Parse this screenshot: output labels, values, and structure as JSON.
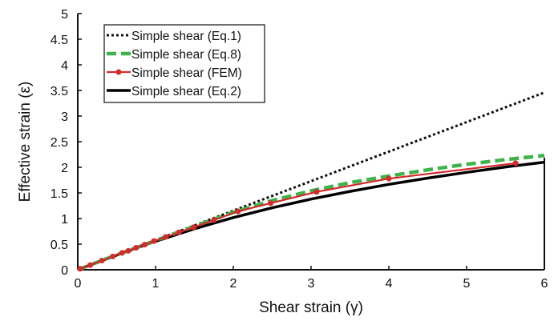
{
  "chart_data": {
    "type": "line",
    "title": "",
    "xlabel": "Shear strain (γ)",
    "ylabel": "Effective strain (ε)",
    "xlim": [
      0,
      6
    ],
    "ylim": [
      0,
      5
    ],
    "xticks": [
      "0",
      "1",
      "2",
      "3",
      "4",
      "5",
      "6"
    ],
    "yticks": [
      "0",
      "0.5",
      "1",
      "1.5",
      "2",
      "2.5",
      "3",
      "3.5",
      "4",
      "4.5",
      "5"
    ],
    "grid": false,
    "legend_position": "top-left",
    "series": [
      {
        "name": "Simple shear (Eq.1)",
        "style": "dotted",
        "color": "#111111",
        "points": [
          [
            0,
            0
          ],
          [
            6,
            3.46
          ]
        ]
      },
      {
        "name": "Simple shear (Eq.8)",
        "style": "dashed",
        "color": "#3cb44a",
        "points": [
          [
            0,
            0
          ],
          [
            0.5,
            0.29
          ],
          [
            1,
            0.57
          ],
          [
            1.5,
            0.85
          ],
          [
            2,
            1.12
          ],
          [
            2.5,
            1.35
          ],
          [
            3,
            1.54
          ],
          [
            3.5,
            1.7
          ],
          [
            4,
            1.83
          ],
          [
            4.5,
            1.95
          ],
          [
            5,
            2.06
          ],
          [
            5.5,
            2.15
          ],
          [
            6,
            2.23
          ]
        ]
      },
      {
        "name": "Simple shear (FEM)",
        "style": "solid-markers",
        "color": "#d42a2a",
        "points": [
          [
            0.03,
            0.02
          ],
          [
            0.16,
            0.09
          ],
          [
            0.31,
            0.18
          ],
          [
            0.45,
            0.26
          ],
          [
            0.57,
            0.33
          ],
          [
            0.65,
            0.37
          ],
          [
            0.75,
            0.43
          ],
          [
            0.86,
            0.49
          ],
          [
            0.98,
            0.56
          ],
          [
            1.13,
            0.64
          ],
          [
            1.3,
            0.73
          ],
          [
            1.49,
            0.83
          ],
          [
            1.75,
            0.97
          ],
          [
            2.06,
            1.14
          ],
          [
            2.48,
            1.3
          ],
          [
            3.07,
            1.52
          ],
          [
            4.0,
            1.78
          ],
          [
            5.63,
            2.08
          ]
        ]
      },
      {
        "name": "Simple shear (Eq.2)",
        "style": "solid-thick",
        "color": "#000000",
        "points": [
          [
            0,
            0
          ],
          [
            0.5,
            0.286
          ],
          [
            1,
            0.556
          ],
          [
            1.5,
            0.8
          ],
          [
            2,
            1.018
          ],
          [
            2.5,
            1.21
          ],
          [
            3,
            1.38
          ],
          [
            3.5,
            1.53
          ],
          [
            4,
            1.667
          ],
          [
            4.5,
            1.789
          ],
          [
            5,
            1.902
          ],
          [
            5.5,
            2.007
          ],
          [
            6,
            2.1
          ]
        ]
      }
    ]
  }
}
